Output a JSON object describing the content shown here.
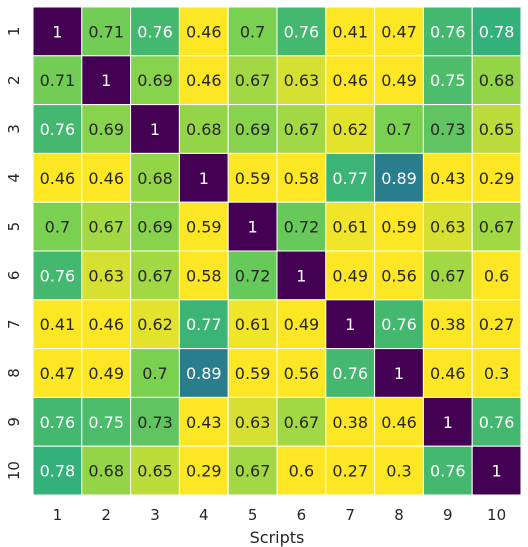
{
  "chart_data": {
    "type": "heatmap",
    "xlabel": "Scripts",
    "ylabel": "",
    "x_categories": [
      "1",
      "2",
      "3",
      "4",
      "5",
      "6",
      "7",
      "8",
      "9",
      "10"
    ],
    "y_categories": [
      "1",
      "2",
      "3",
      "4",
      "5",
      "6",
      "7",
      "8",
      "9",
      "10"
    ],
    "values": [
      [
        1,
        0.71,
        0.76,
        0.46,
        0.7,
        0.76,
        0.41,
        0.47,
        0.76,
        0.78
      ],
      [
        0.71,
        1,
        0.69,
        0.46,
        0.67,
        0.63,
        0.46,
        0.49,
        0.75,
        0.68
      ],
      [
        0.76,
        0.69,
        1,
        0.68,
        0.69,
        0.67,
        0.62,
        0.7,
        0.73,
        0.65
      ],
      [
        0.46,
        0.46,
        0.68,
        1,
        0.59,
        0.58,
        0.77,
        0.89,
        0.43,
        0.29
      ],
      [
        0.7,
        0.67,
        0.69,
        0.59,
        1,
        0.72,
        0.61,
        0.59,
        0.63,
        0.67
      ],
      [
        0.76,
        0.63,
        0.67,
        0.58,
        0.72,
        1,
        0.49,
        0.56,
        0.67,
        0.6
      ],
      [
        0.41,
        0.46,
        0.62,
        0.77,
        0.61,
        0.49,
        1,
        0.76,
        0.38,
        0.27
      ],
      [
        0.47,
        0.49,
        0.7,
        0.89,
        0.59,
        0.56,
        0.76,
        1,
        0.46,
        0.3
      ],
      [
        0.76,
        0.75,
        0.73,
        0.43,
        0.63,
        0.67,
        0.38,
        0.46,
        1,
        0.76
      ],
      [
        0.78,
        0.68,
        0.65,
        0.29,
        0.67,
        0.6,
        0.27,
        0.3,
        0.76,
        1
      ]
    ],
    "colormap": "viridis_r",
    "color_range": [
      0.6,
      1.0
    ],
    "cell_border_color": "#ffffff",
    "colorbar": false,
    "grid": false
  }
}
